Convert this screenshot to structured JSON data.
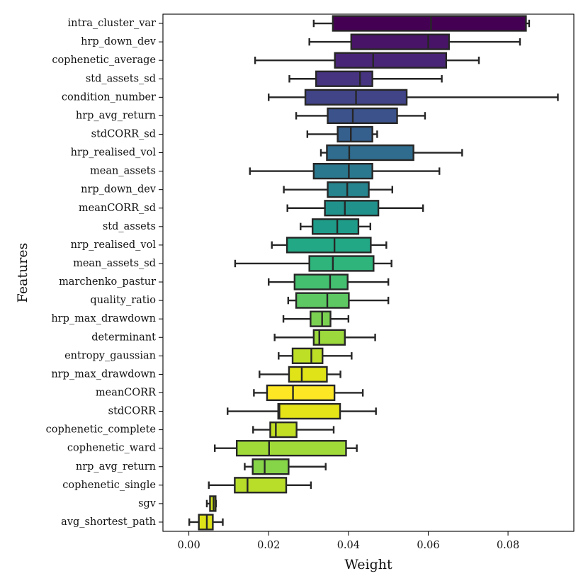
{
  "chart_data": {
    "type": "boxplot",
    "orientation": "horizontal",
    "title": "",
    "xlabel": "Weight",
    "ylabel": "Features",
    "xlim": [
      -0.0065,
      0.0965
    ],
    "xticks": [
      0.0,
      0.02,
      0.04,
      0.06,
      0.08
    ],
    "xtick_labels": [
      "0.00",
      "0.02",
      "0.04",
      "0.06",
      "0.08"
    ],
    "grid": false,
    "palette": "viridis",
    "series": [
      {
        "name": "intra_cluster_var",
        "whisker_low": 0.0313,
        "q1": 0.0361,
        "median": 0.0607,
        "q3": 0.0845,
        "whisker_high": 0.0853,
        "color": "#440154"
      },
      {
        "name": "hrp_down_dev",
        "whisker_low": 0.0302,
        "q1": 0.0407,
        "median": 0.06,
        "q3": 0.0652,
        "whisker_high": 0.083,
        "color": "#481467"
      },
      {
        "name": "cophenetic_average",
        "whisker_low": 0.0166,
        "q1": 0.0366,
        "median": 0.0462,
        "q3": 0.0645,
        "whisker_high": 0.0727,
        "color": "#482576"
      },
      {
        "name": "std_assets_sd",
        "whisker_low": 0.0252,
        "q1": 0.0319,
        "median": 0.0429,
        "q3": 0.046,
        "whisker_high": 0.0634,
        "color": "#463480"
      },
      {
        "name": "condition_number",
        "whisker_low": 0.02,
        "q1": 0.0292,
        "median": 0.0419,
        "q3": 0.0546,
        "whisker_high": 0.0925,
        "color": "#414487"
      },
      {
        "name": "hrp_avg_return",
        "whisker_low": 0.0269,
        "q1": 0.0348,
        "median": 0.0411,
        "q3": 0.0522,
        "whisker_high": 0.0592,
        "color": "#3b528b"
      },
      {
        "name": "stdCORR_sd",
        "whisker_low": 0.0297,
        "q1": 0.0373,
        "median": 0.0406,
        "q3": 0.046,
        "whisker_high": 0.0472,
        "color": "#355f8d"
      },
      {
        "name": "hrp_realised_vol",
        "whisker_low": 0.0331,
        "q1": 0.0346,
        "median": 0.0402,
        "q3": 0.0563,
        "whisker_high": 0.0685,
        "color": "#2f6c8e"
      },
      {
        "name": "mean_assets",
        "whisker_low": 0.0153,
        "q1": 0.0313,
        "median": 0.0401,
        "q3": 0.046,
        "whisker_high": 0.0628,
        "color": "#2a788e"
      },
      {
        "name": "nrp_down_dev",
        "whisker_low": 0.0238,
        "q1": 0.0348,
        "median": 0.0397,
        "q3": 0.0451,
        "whisker_high": 0.051,
        "color": "#25848e"
      },
      {
        "name": "meanCORR_sd",
        "whisker_low": 0.0247,
        "q1": 0.0341,
        "median": 0.0391,
        "q3": 0.0475,
        "whisker_high": 0.0587,
        "color": "#21918c"
      },
      {
        "name": "std_assets",
        "whisker_low": 0.028,
        "q1": 0.031,
        "median": 0.0372,
        "q3": 0.0425,
        "whisker_high": 0.0455,
        "color": "#1e9c89"
      },
      {
        "name": "nrp_realised_vol",
        "whisker_low": 0.0208,
        "q1": 0.0246,
        "median": 0.0365,
        "q3": 0.0456,
        "whisker_high": 0.0495,
        "color": "#22a884"
      },
      {
        "name": "mean_assets_sd",
        "whisker_low": 0.0116,
        "q1": 0.0302,
        "median": 0.0361,
        "q3": 0.0463,
        "whisker_high": 0.0508,
        "color": "#2fb47c"
      },
      {
        "name": "marchenko_pastur",
        "whisker_low": 0.02,
        "q1": 0.0265,
        "median": 0.0354,
        "q3": 0.0398,
        "whisker_high": 0.05,
        "color": "#44bf70"
      },
      {
        "name": "quality_ratio",
        "whisker_low": 0.0249,
        "q1": 0.0269,
        "median": 0.0347,
        "q3": 0.0401,
        "whisker_high": 0.05,
        "color": "#5ec962"
      },
      {
        "name": "hrp_max_drawdown",
        "whisker_low": 0.0237,
        "q1": 0.0305,
        "median": 0.0334,
        "q3": 0.0355,
        "whisker_high": 0.04,
        "color": "#7ad151"
      },
      {
        "name": "determinant",
        "whisker_low": 0.0215,
        "q1": 0.0313,
        "median": 0.0327,
        "q3": 0.0391,
        "whisker_high": 0.0467,
        "color": "#9bd93c"
      },
      {
        "name": "entropy_gaussian",
        "whisker_low": 0.0225,
        "q1": 0.026,
        "median": 0.0307,
        "q3": 0.0335,
        "whisker_high": 0.0408,
        "color": "#bddf26"
      },
      {
        "name": "nrp_max_drawdown",
        "whisker_low": 0.0177,
        "q1": 0.0251,
        "median": 0.0283,
        "q3": 0.0346,
        "whisker_high": 0.038,
        "color": "#dfe318"
      },
      {
        "name": "meanCORR",
        "whisker_low": 0.0163,
        "q1": 0.0196,
        "median": 0.0261,
        "q3": 0.0365,
        "whisker_high": 0.0436,
        "color": "#fde725"
      },
      {
        "name": "stdCORR",
        "whisker_low": 0.0097,
        "q1": 0.0224,
        "median": 0.0227,
        "q3": 0.0379,
        "whisker_high": 0.0469,
        "color": "#e5e419"
      },
      {
        "name": "cophenetic_complete",
        "whisker_low": 0.0161,
        "q1": 0.0204,
        "median": 0.0218,
        "q3": 0.027,
        "whisker_high": 0.0363,
        "color": "#c2df23"
      },
      {
        "name": "cophenetic_ward",
        "whisker_low": 0.0065,
        "q1": 0.012,
        "median": 0.0201,
        "q3": 0.0394,
        "whisker_high": 0.0421,
        "color": "#a0da39"
      },
      {
        "name": "nrp_avg_return",
        "whisker_low": 0.014,
        "q1": 0.016,
        "median": 0.019,
        "q3": 0.025,
        "whisker_high": 0.0343,
        "color": "#86d549"
      },
      {
        "name": "cophenetic_single",
        "whisker_low": 0.005,
        "q1": 0.0115,
        "median": 0.0147,
        "q3": 0.0244,
        "whisker_high": 0.0306,
        "color": "#b8de29"
      },
      {
        "name": "sgv",
        "whisker_low": 0.0045,
        "q1": 0.0053,
        "median": 0.0062,
        "q3": 0.0067,
        "whisker_high": 0.0068,
        "color": "#d0e11c"
      },
      {
        "name": "avg_shortest_path",
        "whisker_low": 0.0001,
        "q1": 0.0025,
        "median": 0.0045,
        "q3": 0.006,
        "whisker_high": 0.0085,
        "color": "#dde318"
      }
    ]
  }
}
